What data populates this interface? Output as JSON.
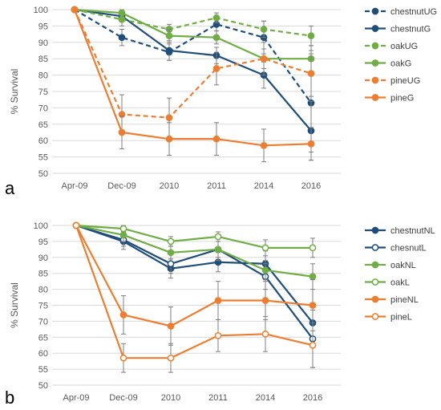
{
  "chart_data": [
    {
      "panel_label": "a",
      "type": "line",
      "ylabel": "% Survival",
      "categories": [
        "Apr-09",
        "Dec-09",
        "2010",
        "2011",
        "2014",
        "2016"
      ],
      "ylim": [
        50,
        100
      ],
      "yticks": [
        50,
        55,
        60,
        65,
        70,
        75,
        80,
        85,
        90,
        95,
        100
      ],
      "grid": true,
      "legend": "right",
      "series": [
        {
          "name": "chestnutUG",
          "color": "#1f4e79",
          "dashed": true,
          "marker": "filled",
          "values": [
            100,
            91.5,
            87,
            95.5,
            91.5,
            71.5
          ],
          "errors": [
            0,
            2.5,
            2.5,
            2.0,
            5.0,
            15.0
          ]
        },
        {
          "name": "chestnutG",
          "color": "#1f4e79",
          "dashed": false,
          "marker": "filled",
          "values": [
            100,
            98,
            87.5,
            86,
            80,
            63
          ],
          "errors": [
            0,
            1.5,
            3.0,
            2.5,
            4.0,
            9.0
          ]
        },
        {
          "name": "oakUG",
          "color": "#70ad47",
          "dashed": true,
          "marker": "filled",
          "values": [
            100,
            97,
            94,
            97.5,
            94,
            92
          ],
          "errors": [
            0,
            2.0,
            1.5,
            1.5,
            2.5,
            3.0
          ]
        },
        {
          "name": "oakG",
          "color": "#70ad47",
          "dashed": false,
          "marker": "filled",
          "values": [
            100,
            99,
            92,
            91.5,
            85,
            85
          ],
          "errors": [
            0,
            1.0,
            2.0,
            2.0,
            3.0,
            4.0
          ]
        },
        {
          "name": "pineUG",
          "color": "#ed7d31",
          "dashed": true,
          "marker": "filled",
          "values": [
            100,
            68,
            67,
            82,
            85,
            80.5
          ],
          "errors": [
            0,
            6.0,
            6.0,
            5.0,
            5.0,
            7.0
          ]
        },
        {
          "name": "pineG",
          "color": "#ed7d31",
          "dashed": false,
          "marker": "filled",
          "values": [
            100,
            62.5,
            60.5,
            60.5,
            58.5,
            59
          ],
          "errors": [
            0,
            5.0,
            5.0,
            5.0,
            5.0,
            5.0
          ]
        }
      ]
    },
    {
      "panel_label": "b",
      "type": "line",
      "ylabel": "% Survival",
      "categories": [
        "Apr-09",
        "Dec-09",
        "2010",
        "2011",
        "2014",
        "2016"
      ],
      "ylim": [
        50,
        100
      ],
      "yticks": [
        50,
        55,
        60,
        65,
        70,
        75,
        80,
        85,
        90,
        95,
        100
      ],
      "grid": true,
      "legend": "right",
      "series": [
        {
          "name": "chestnutNL",
          "color": "#1f4e79",
          "dashed": false,
          "marker": "filled",
          "values": [
            100,
            95,
            86.5,
            88.5,
            88,
            69.5
          ],
          "errors": [
            0,
            2.5,
            3.0,
            3.0,
            4.0,
            14.0
          ]
        },
        {
          "name": "chesnutL",
          "color": "#1f4e79",
          "dashed": false,
          "marker": "hollow",
          "values": [
            100,
            95.5,
            88,
            92.5,
            84,
            64.5
          ],
          "errors": [
            0,
            2.0,
            3.0,
            3.5,
            4.0,
            9.0
          ]
        },
        {
          "name": "oakNL",
          "color": "#70ad47",
          "dashed": false,
          "marker": "filled",
          "values": [
            100,
            97,
            91.5,
            92.5,
            86,
            84
          ],
          "errors": [
            0,
            2.0,
            2.0,
            2.5,
            3.0,
            4.0
          ]
        },
        {
          "name": "oakL",
          "color": "#70ad47",
          "dashed": false,
          "marker": "hollow",
          "values": [
            100,
            99,
            95,
            96.5,
            93,
            93
          ],
          "errors": [
            0,
            1.0,
            1.5,
            1.5,
            2.5,
            3.0
          ]
        },
        {
          "name": "pineNL",
          "color": "#ed7d31",
          "dashed": false,
          "marker": "filled",
          "values": [
            100,
            72,
            68.5,
            76.5,
            76.5,
            75
          ],
          "errors": [
            0,
            6.0,
            6.0,
            6.0,
            6.0,
            8.0
          ]
        },
        {
          "name": "pineL",
          "color": "#ed7d31",
          "dashed": false,
          "marker": "hollow",
          "values": [
            100,
            58.5,
            58.5,
            65.5,
            66,
            62.5
          ],
          "errors": [
            0,
            4.5,
            4.5,
            5.0,
            5.5,
            7.0
          ]
        }
      ]
    }
  ]
}
